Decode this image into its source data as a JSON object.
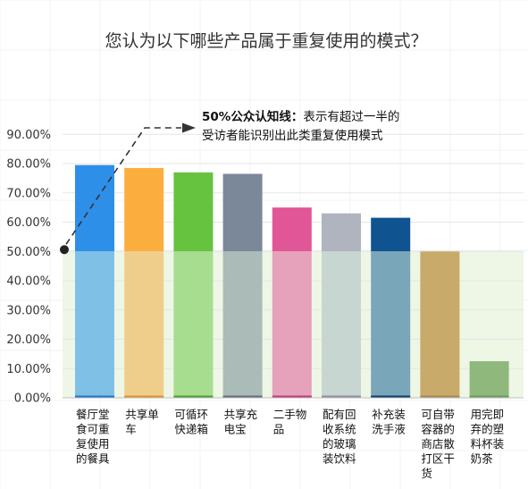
{
  "chart_data": {
    "type": "bar",
    "title": "您认为以下哪些产品属于重复使用的模式？",
    "xlabel": "",
    "ylabel": "",
    "ylim": [
      0,
      95
    ],
    "yticks": [
      "0.00%",
      "10.00%",
      "20.00%",
      "30.00%",
      "40.00%",
      "50.00%",
      "60.00%",
      "70.00%",
      "80.00%",
      "90.00%"
    ],
    "ytick_values": [
      0,
      10,
      20,
      30,
      40,
      50,
      60,
      70,
      80,
      90
    ],
    "threshold": 50,
    "annotation": {
      "bold": "50%公众认知线：",
      "rest_line1": "表示有超过一半的",
      "line2": "受访者能识别出此类重复使用模式"
    },
    "categories": [
      [
        "餐厅堂",
        "食可重",
        "复使用",
        "的餐具"
      ],
      [
        "共享单",
        "车"
      ],
      [
        "可循环",
        "快递箱"
      ],
      [
        "共享充",
        "电宝"
      ],
      [
        "二手物",
        "品"
      ],
      [
        "配有回",
        "收系统",
        "的玻璃",
        "装饮料"
      ],
      [
        "补充装",
        "洗手液"
      ],
      [
        "可自带",
        "容器的",
        "商店散",
        "打区干",
        "货"
      ],
      [
        "用完即",
        "弃的塑",
        "料杯装",
        "奶茶"
      ]
    ],
    "values": [
      79.5,
      78.5,
      77,
      76.5,
      65,
      63,
      61.5,
      50,
      12.5
    ],
    "colors": {
      "bar_top": [
        "#2e8fe8",
        "#fbae3d",
        "#65c33f",
        "#7b889a",
        "#e15696",
        "#afb4be",
        "#0f5390",
        "#c8ab6a",
        "#8fb87d"
      ],
      "bar_bottom": [
        "#7fc1e6",
        "#eece8a",
        "#a7dd8f",
        "#abbbb8",
        "#e6a1bb",
        "#c7d6d0",
        "#7aa6ba",
        "#c8ab6a",
        "#8fb87d"
      ],
      "bar_base": [
        "#2176c9",
        "#e0922a",
        "#4aa033",
        "#636f80",
        "#c03c79",
        "#8e939d",
        "#0a3f70",
        "#a8894a",
        "#6d9a5c"
      ],
      "threshold_band": "#eef6e6",
      "grid": "#e6e6e6"
    }
  }
}
